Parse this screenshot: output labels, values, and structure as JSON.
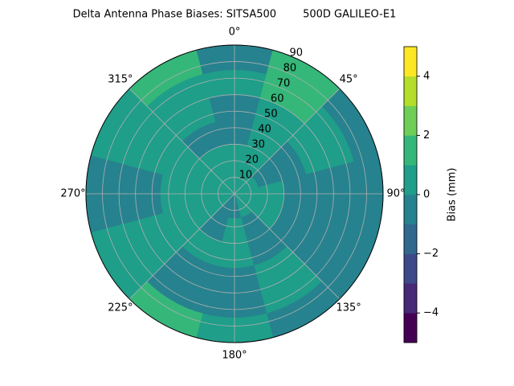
{
  "chart_data": {
    "type": "polar-contour",
    "title": "Delta Antenna Phase Biases: SITSA500        500D GALILEO-E1",
    "theta_direction": "clockwise",
    "theta_zero": "N",
    "theta_edges": [
      -15,
      15,
      45,
      75,
      105,
      135,
      165,
      195,
      225,
      255,
      285,
      315,
      345
    ],
    "r_edges": [
      0,
      15,
      30,
      45,
      60,
      75,
      90
    ],
    "values": [
      [
        0.5,
        0.5,
        0.5,
        0.5,
        0.5,
        0.5,
        -0.5,
        -0.5,
        0.5,
        0.5,
        0.5,
        0.5
      ],
      [
        0.5,
        0.5,
        -0.5,
        0.5,
        0.5,
        -0.5,
        0.5,
        -0.5,
        0.5,
        0.5,
        0.5,
        0.5
      ],
      [
        -0.5,
        0.5,
        -0.5,
        -0.5,
        -0.5,
        -0.5,
        0.5,
        0.5,
        0.5,
        0.5,
        0.5,
        -0.5
      ],
      [
        -0.5,
        0.5,
        0.5,
        -0.5,
        -0.5,
        0.5,
        -0.5,
        -0.5,
        0.5,
        -0.5,
        0.5,
        0.5
      ],
      [
        0.5,
        1.5,
        0.5,
        -0.5,
        -0.5,
        0.5,
        -0.5,
        -0.5,
        0.5,
        -0.5,
        0.5,
        0.5
      ],
      [
        -0.5,
        1.5,
        -0.5,
        -0.5,
        -0.5,
        -0.5,
        0.5,
        1.5,
        0.5,
        -0.5,
        0.5,
        1.5
      ]
    ],
    "rlim": [
      0,
      90
    ],
    "rticks": [
      10,
      20,
      30,
      40,
      50,
      60,
      70,
      80,
      90
    ],
    "thetaticks": [
      {
        "value": 0,
        "label": "0°"
      },
      {
        "value": 45,
        "label": "45°"
      },
      {
        "value": 90,
        "label": "90°"
      },
      {
        "value": 135,
        "label": "135°"
      },
      {
        "value": 180,
        "label": "180°"
      },
      {
        "value": 225,
        "label": "225°"
      },
      {
        "value": 270,
        "label": "270°"
      },
      {
        "value": 315,
        "label": "315°"
      }
    ],
    "grid": true,
    "colorbar": {
      "label": "Bias (mm)",
      "levels": [
        -5,
        -4,
        -3,
        -2,
        -1,
        0,
        1,
        2,
        3,
        4,
        5
      ],
      "colors": [
        "#440154",
        "#482878",
        "#3e4989",
        "#31688e",
        "#26828e",
        "#1f9e89",
        "#35b779",
        "#6ece58",
        "#b5de2b",
        "#fde725"
      ],
      "ticks": [
        {
          "value": -4,
          "label": "−4"
        },
        {
          "value": -2,
          "label": "−2"
        },
        0,
        2,
        4
      ]
    }
  }
}
